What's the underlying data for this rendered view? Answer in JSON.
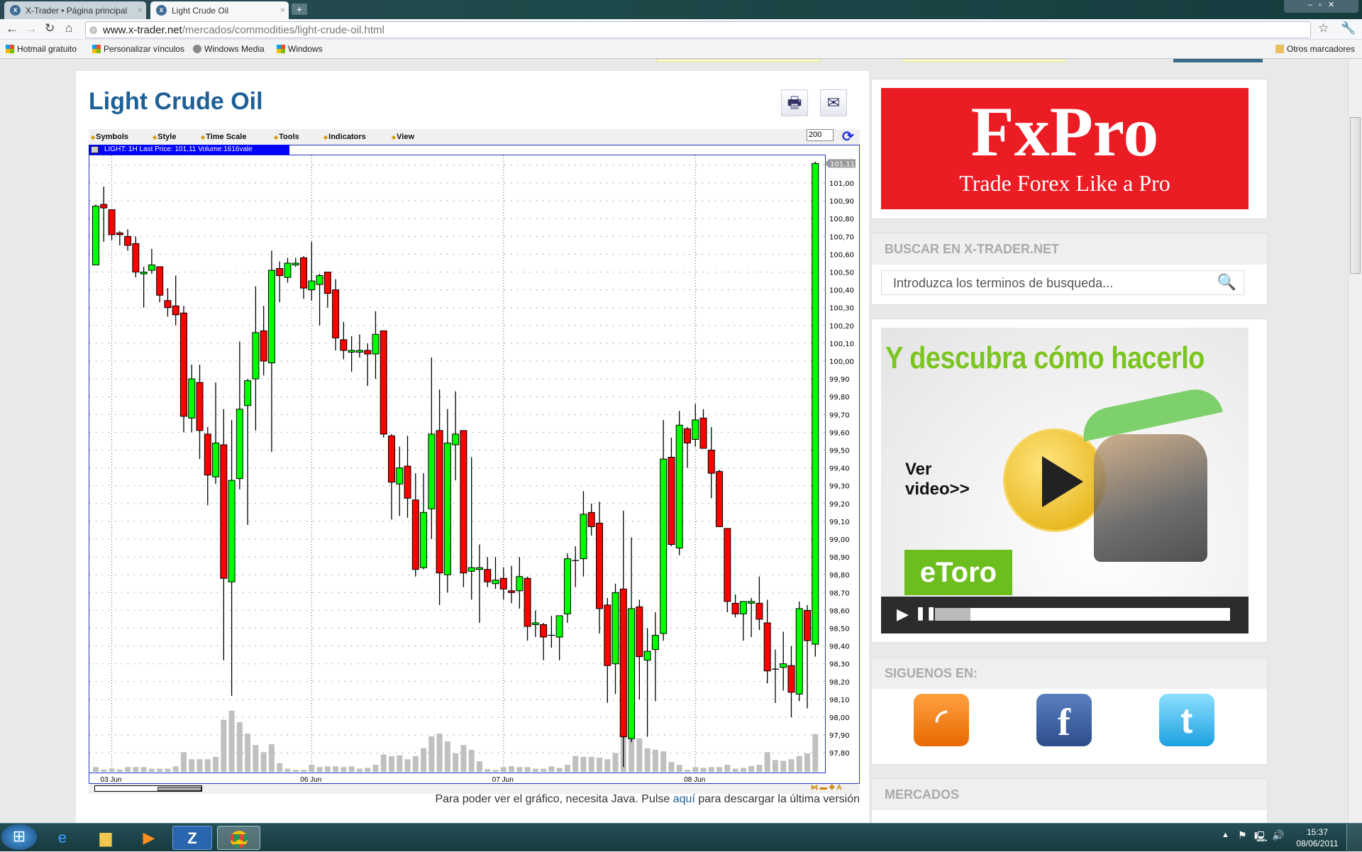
{
  "browser": {
    "tabs": [
      {
        "label": "X-Trader • Página principal"
      },
      {
        "label": "Light Crude Oil"
      }
    ],
    "url_domain": "www.x-trader.net",
    "url_path": "/mercados/commodities/light-crude-oil.html",
    "bookmarks": [
      "Hotmail gratuito",
      "Personalizar vínculos",
      "Windows Media",
      "Windows"
    ],
    "other_bookmarks": "Otros marcadores"
  },
  "page": {
    "title": "Light Crude Oil",
    "chart_menu": [
      "Symbols",
      "Style",
      "Time Scale",
      "Tools",
      "Indicators",
      "View"
    ],
    "periods": "200",
    "info_bar": "LIGHT: 1H Last Price: 101,11 Volume:1616vale",
    "java_pre": "Para poder ver el gráfico, necesita Java. Pulse ",
    "java_link": "aquí",
    "java_post": " para descargar la última versión"
  },
  "sidebar": {
    "fxpro_brand": "FxPro",
    "fxpro_tagline": "Trade Forex Like a Pro",
    "search_header": "BUSCAR EN X-TRADER.NET",
    "search_placeholder": "Introduzca los terminos de busqueda...",
    "etoro_headline": "Y descubra cómo hacerlo",
    "etoro_cta": "Ver video>>",
    "etoro_brand": "eToro",
    "follow_header": "SIGUENOS EN:",
    "markets_header": "MERCADOS"
  },
  "taskbar": {
    "time": "15:37",
    "date": "08/06/2011"
  },
  "colors": {
    "up": "#00ff00",
    "down": "#ff0000",
    "title": "#1d5f96",
    "volume": "#c0c0c0"
  },
  "chart_data": {
    "type": "candlestick",
    "symbol": "LIGHT",
    "interval": "1H",
    "last_price_label": "101,11",
    "ylim": [
      97.75,
      101.15
    ],
    "y_ticks": [
      "101,00",
      "100,90",
      "100,80",
      "100,70",
      "100,60",
      "100,50",
      "100,40",
      "100,30",
      "100,20",
      "100,10",
      "100,00",
      "99,90",
      "99,80",
      "99,70",
      "99,60",
      "99,50",
      "99,40",
      "99,30",
      "99,20",
      "99,10",
      "99,00",
      "98,90",
      "98,80",
      "98,70",
      "98,60",
      "98,50",
      "98,40",
      "98,30",
      "98,20",
      "98,10",
      "98,00",
      "97,90",
      "97,80"
    ],
    "x_ticks": [
      {
        "label": "03 Jun",
        "index": 2
      },
      {
        "label": "06 Jun",
        "index": 27
      },
      {
        "label": "07 Jun",
        "index": 51
      },
      {
        "label": "08 Jun",
        "index": 75
      }
    ],
    "ohlc": [
      [
        100.54,
        100.88,
        100.54,
        100.87
      ],
      [
        100.88,
        100.98,
        100.67,
        100.86
      ],
      [
        100.85,
        100.85,
        100.68,
        100.71
      ],
      [
        100.72,
        100.73,
        100.65,
        100.71
      ],
      [
        100.7,
        100.74,
        100.62,
        100.65
      ],
      [
        100.66,
        100.7,
        100.47,
        100.5
      ],
      [
        100.49,
        100.53,
        100.3,
        100.5
      ],
      [
        100.51,
        100.63,
        100.49,
        100.54
      ],
      [
        100.53,
        100.53,
        100.33,
        100.37
      ],
      [
        100.34,
        100.41,
        100.25,
        100.3
      ],
      [
        100.31,
        100.48,
        100.2,
        100.26
      ],
      [
        100.27,
        100.31,
        99.6,
        99.69
      ],
      [
        99.68,
        99.98,
        99.6,
        99.9
      ],
      [
        99.88,
        99.98,
        99.45,
        99.61
      ],
      [
        99.59,
        99.63,
        99.19,
        99.36
      ],
      [
        99.35,
        99.88,
        99.31,
        99.54
      ],
      [
        99.53,
        99.73,
        98.32,
        98.78
      ],
      [
        98.76,
        99.67,
        98.12,
        99.33
      ],
      [
        99.34,
        100.11,
        99.28,
        99.73
      ],
      [
        99.75,
        99.9,
        99.08,
        99.89
      ],
      [
        99.9,
        100.42,
        99.61,
        100.16
      ],
      [
        100.17,
        100.31,
        99.92,
        100.0
      ],
      [
        99.99,
        100.62,
        99.49,
        100.51
      ],
      [
        100.52,
        100.56,
        100.33,
        100.48
      ],
      [
        100.47,
        100.58,
        100.44,
        100.55
      ],
      [
        100.54,
        100.58,
        100.53,
        100.55
      ],
      [
        100.58,
        100.59,
        100.35,
        100.41
      ],
      [
        100.4,
        100.67,
        100.34,
        100.45
      ],
      [
        100.43,
        100.49,
        100.2,
        100.48
      ],
      [
        100.5,
        100.5,
        100.3,
        100.38
      ],
      [
        100.4,
        100.46,
        100.06,
        100.13
      ],
      [
        100.12,
        100.22,
        100.01,
        100.06
      ],
      [
        100.05,
        100.14,
        99.94,
        100.06
      ],
      [
        100.05,
        100.15,
        100.02,
        100.06
      ],
      [
        100.06,
        100.1,
        99.86,
        100.04
      ],
      [
        100.04,
        100.28,
        99.9,
        100.15
      ],
      [
        100.17,
        100.17,
        99.57,
        99.59
      ],
      [
        99.58,
        99.59,
        99.11,
        99.32
      ],
      [
        99.31,
        99.52,
        99.13,
        99.4
      ],
      [
        99.41,
        99.58,
        99.12,
        99.23
      ],
      [
        99.22,
        99.37,
        98.79,
        98.83
      ],
      [
        98.84,
        99.37,
        98.83,
        99.15
      ],
      [
        99.17,
        100.02,
        99.0,
        99.59
      ],
      [
        99.61,
        99.84,
        98.63,
        98.81
      ],
      [
        98.8,
        99.73,
        98.7,
        99.54
      ],
      [
        99.53,
        99.83,
        99.33,
        99.59
      ],
      [
        99.61,
        99.61,
        98.73,
        98.81
      ],
      [
        98.82,
        99.46,
        98.66,
        98.84
      ],
      [
        98.83,
        98.97,
        98.53,
        98.84
      ],
      [
        98.83,
        98.9,
        98.73,
        98.76
      ],
      [
        98.75,
        98.9,
        98.72,
        98.77
      ],
      [
        98.78,
        98.84,
        98.66,
        98.72
      ],
      [
        98.71,
        98.85,
        98.64,
        98.7
      ],
      [
        98.71,
        98.9,
        98.61,
        98.79
      ],
      [
        98.78,
        98.79,
        98.43,
        98.51
      ],
      [
        98.52,
        98.6,
        98.45,
        98.53
      ],
      [
        98.52,
        98.53,
        98.32,
        98.45
      ],
      [
        98.46,
        98.57,
        98.39,
        98.46
      ],
      [
        98.45,
        98.57,
        98.32,
        98.57
      ],
      [
        98.58,
        98.92,
        98.53,
        98.89
      ],
      [
        98.88,
        98.96,
        98.73,
        98.88
      ],
      [
        98.89,
        99.27,
        98.79,
        99.14
      ],
      [
        99.15,
        99.2,
        99.02,
        99.07
      ],
      [
        99.09,
        99.21,
        98.47,
        98.61
      ],
      [
        98.63,
        98.67,
        98.08,
        98.29
      ],
      [
        98.3,
        98.75,
        98.13,
        98.7
      ],
      [
        98.72,
        99.16,
        97.72,
        97.89
      ],
      [
        97.88,
        99.01,
        97.86,
        98.61
      ],
      [
        98.62,
        98.66,
        98.1,
        98.34
      ],
      [
        98.32,
        98.5,
        97.89,
        98.37
      ],
      [
        98.38,
        98.59,
        98.09,
        98.46
      ],
      [
        98.47,
        99.67,
        98.43,
        99.45
      ],
      [
        99.46,
        99.57,
        98.96,
        98.97
      ],
      [
        98.95,
        99.72,
        98.91,
        99.64
      ],
      [
        99.62,
        99.63,
        99.4,
        99.54
      ],
      [
        99.56,
        99.76,
        99.52,
        99.67
      ],
      [
        99.68,
        99.73,
        99.51,
        99.51
      ],
      [
        99.5,
        99.63,
        99.23,
        99.37
      ],
      [
        99.38,
        99.39,
        99.07,
        99.07
      ],
      [
        99.06,
        99.06,
        98.59,
        98.65
      ],
      [
        98.64,
        98.69,
        98.56,
        98.58
      ],
      [
        98.58,
        98.65,
        98.43,
        98.65
      ],
      [
        98.64,
        98.67,
        98.45,
        98.65
      ],
      [
        98.64,
        98.79,
        98.49,
        98.55
      ],
      [
        98.53,
        98.66,
        98.19,
        98.26
      ],
      [
        98.27,
        98.38,
        98.08,
        98.27
      ],
      [
        98.28,
        98.48,
        98.15,
        98.3
      ],
      [
        98.29,
        98.4,
        98.0,
        98.14
      ],
      [
        98.13,
        98.65,
        98.09,
        98.61
      ],
      [
        98.6,
        98.63,
        98.05,
        98.43
      ],
      [
        98.41,
        101.12,
        98.34,
        101.11
      ]
    ],
    "volume_relative": [
      12,
      6,
      8,
      6,
      12,
      12,
      12,
      8,
      8,
      8,
      14,
      50,
      32,
      32,
      32,
      38,
      132,
      155,
      126,
      97,
      68,
      50,
      70,
      22,
      8,
      5,
      5,
      18,
      12,
      14,
      14,
      12,
      14,
      8,
      10,
      18,
      44,
      40,
      42,
      32,
      40,
      60,
      90,
      97,
      77,
      47,
      68,
      56,
      27,
      7,
      5,
      12,
      14,
      12,
      12,
      8,
      8,
      14,
      10,
      18,
      40,
      38,
      38,
      36,
      32,
      48,
      100,
      90,
      85,
      60,
      56,
      52,
      25,
      18,
      5,
      12,
      10,
      12,
      12,
      18,
      8,
      10,
      15,
      18,
      50,
      30,
      28,
      32,
      40,
      47,
      96
    ],
    "grid": true
  }
}
